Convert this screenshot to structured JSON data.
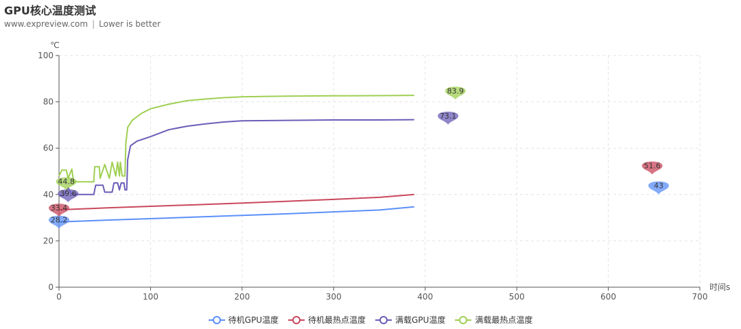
{
  "title": "GPU核心温度测试",
  "subtitle": {
    "site": "www.expreview.com",
    "note": "Lower is better"
  },
  "chart_data": {
    "type": "line",
    "title": "GPU核心温度测试",
    "ylabel": "℃",
    "xlabel": "时间s",
    "xlim": [
      0,
      700
    ],
    "ylim": [
      0,
      100
    ],
    "x_ticks": [
      0,
      100,
      200,
      300,
      400,
      500,
      600,
      700
    ],
    "y_ticks": [
      0,
      20,
      40,
      60,
      80,
      100
    ],
    "grid": "dashed",
    "legend_position": "bottom-center",
    "series": [
      {
        "name": "待机GPU温度",
        "color": "#5b8ff9",
        "points": [
          [
            0,
            28.2
          ],
          [
            50,
            28.9
          ],
          [
            100,
            29.6
          ],
          [
            150,
            30.3
          ],
          [
            200,
            31.0
          ],
          [
            250,
            31.7
          ],
          [
            300,
            32.5
          ],
          [
            350,
            33.3
          ],
          [
            388,
            34.7
          ]
        ],
        "markers": [
          {
            "label": "28.2",
            "x": 0,
            "y": 28.2,
            "kind": "min"
          },
          {
            "label": "43",
            "x": 655,
            "y": 43,
            "kind": "max"
          }
        ]
      },
      {
        "name": "待机最热点温度",
        "color": "#c9475b",
        "points": [
          [
            0,
            33.4
          ],
          [
            50,
            34.2
          ],
          [
            100,
            34.9
          ],
          [
            150,
            35.6
          ],
          [
            200,
            36.3
          ],
          [
            250,
            37.1
          ],
          [
            300,
            37.9
          ],
          [
            350,
            38.8
          ],
          [
            388,
            40.0
          ]
        ],
        "markers": [
          {
            "label": "33.4",
            "x": 0,
            "y": 33.4,
            "kind": "min"
          },
          {
            "label": "51.6",
            "x": 648,
            "y": 51.6,
            "kind": "max"
          }
        ]
      },
      {
        "name": "满载GPU温度",
        "color": "#6a5cb8",
        "points": [
          [
            0,
            39.6
          ],
          [
            5,
            39.6
          ],
          [
            10,
            43
          ],
          [
            14,
            40
          ],
          [
            38,
            40
          ],
          [
            40,
            44
          ],
          [
            48,
            44
          ],
          [
            50,
            41
          ],
          [
            58,
            41
          ],
          [
            60,
            45
          ],
          [
            64,
            45
          ],
          [
            66,
            42
          ],
          [
            68,
            45
          ],
          [
            71,
            45
          ],
          [
            72,
            42
          ],
          [
            74,
            42
          ],
          [
            75,
            55
          ],
          [
            78,
            61
          ],
          [
            85,
            63
          ],
          [
            100,
            65
          ],
          [
            120,
            68
          ],
          [
            140,
            69.5
          ],
          [
            160,
            70.5
          ],
          [
            180,
            71.3
          ],
          [
            200,
            71.8
          ],
          [
            250,
            72.0
          ],
          [
            300,
            72.2
          ],
          [
            350,
            72.2
          ],
          [
            388,
            72.3
          ]
        ],
        "markers": [
          {
            "label": "39.6",
            "x": 10,
            "y": 39.6,
            "kind": "min"
          },
          {
            "label": "73.1",
            "x": 425,
            "y": 73.1,
            "kind": "max"
          }
        ]
      },
      {
        "name": "满载最热点温度",
        "color": "#9fcf52",
        "points": [
          [
            0,
            48
          ],
          [
            3,
            50.5
          ],
          [
            8,
            50.5
          ],
          [
            10,
            47
          ],
          [
            14,
            51
          ],
          [
            16,
            45.5
          ],
          [
            38,
            45.5
          ],
          [
            39,
            52
          ],
          [
            44,
            52
          ],
          [
            45,
            47
          ],
          [
            50,
            53
          ],
          [
            55,
            47
          ],
          [
            58,
            54
          ],
          [
            62,
            48
          ],
          [
            64,
            54
          ],
          [
            66,
            48
          ],
          [
            67,
            54
          ],
          [
            69,
            48
          ],
          [
            72,
            48
          ],
          [
            73,
            62
          ],
          [
            75,
            69
          ],
          [
            80,
            72
          ],
          [
            90,
            75
          ],
          [
            100,
            77
          ],
          [
            120,
            79
          ],
          [
            140,
            80.5
          ],
          [
            160,
            81.2
          ],
          [
            180,
            81.8
          ],
          [
            200,
            82.2
          ],
          [
            250,
            82.5
          ],
          [
            300,
            82.6
          ],
          [
            350,
            82.7
          ],
          [
            388,
            82.8
          ]
        ],
        "markers": [
          {
            "label": "44.8",
            "x": 8,
            "y": 44.8,
            "kind": "min"
          },
          {
            "label": "83.9",
            "x": 433,
            "y": 83.9,
            "kind": "max"
          }
        ]
      }
    ]
  }
}
